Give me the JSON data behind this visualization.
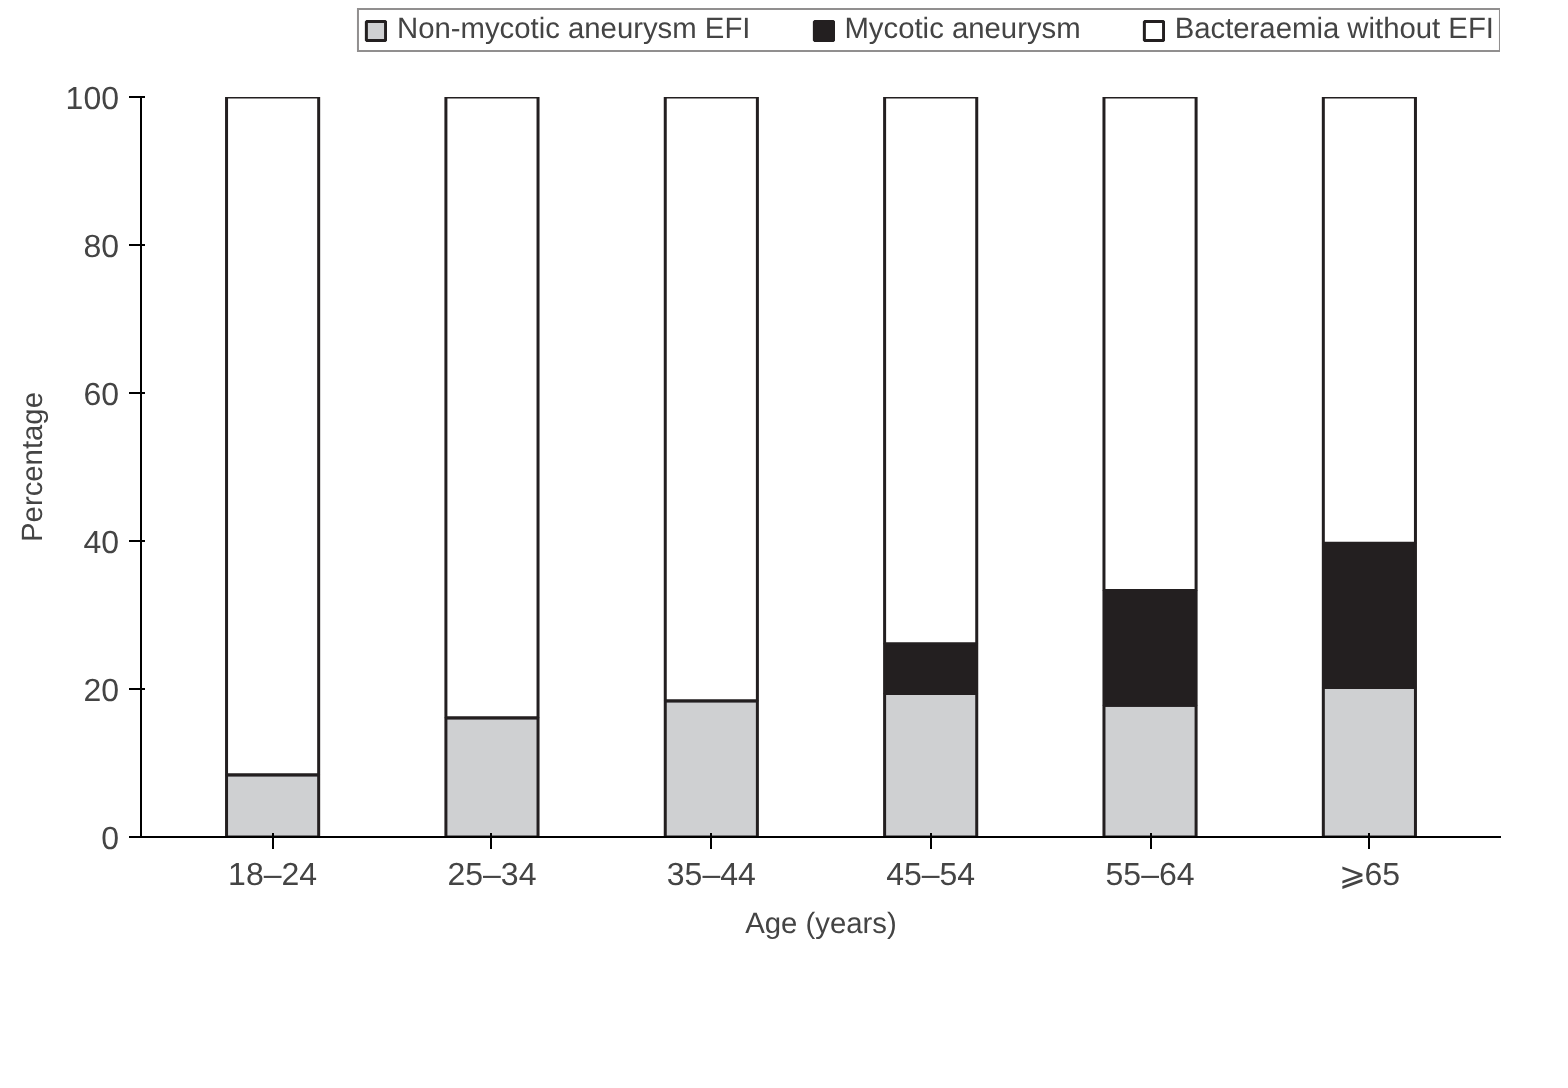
{
  "chart_data": {
    "type": "bar",
    "stacked": true,
    "xlabel": "Age (years)",
    "ylabel": "Percentage",
    "categories": [
      "18–24",
      "25–34",
      "35–44",
      "45–54",
      "55–64",
      "⩾65"
    ],
    "series": [
      {
        "name": "Non-mycotic aneurysm EFI",
        "color": "#cfd0d2",
        "values": [
          8.4,
          16.1,
          18.4,
          19.4,
          17.8,
          20.2
        ]
      },
      {
        "name": "Mycotic aneurysm",
        "color": "#231f20",
        "values": [
          0,
          0,
          0,
          6.7,
          15.5,
          19.5
        ]
      },
      {
        "name": "Bacteraemia without EFI",
        "color": "#ffffff",
        "values": [
          91.6,
          83.9,
          81.6,
          73.9,
          66.7,
          60.3
        ]
      }
    ],
    "ylim": [
      0,
      100
    ],
    "yticks": [
      0,
      20,
      40,
      60,
      80,
      100
    ],
    "grid": false,
    "legend": "top"
  }
}
